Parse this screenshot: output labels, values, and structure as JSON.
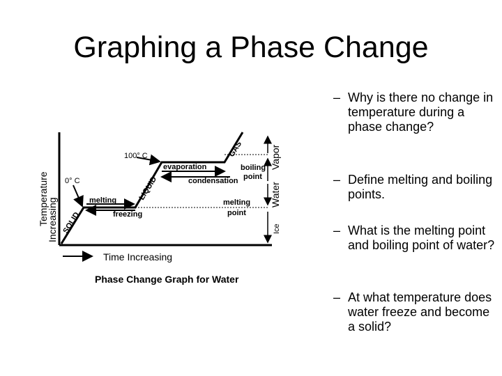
{
  "slide": {
    "title": "Graphing a Phase Change",
    "bullets": [
      {
        "dash": "–",
        "text": "Why is there no change in temperature during a phase change?"
      },
      {
        "dash": "–",
        "text": "Define melting and boiling points."
      },
      {
        "dash": "–",
        "text": "What is the melting point and boiling point of water?"
      },
      {
        "dash": "–",
        "text": "At what temperature does water freeze and become a solid?"
      }
    ]
  },
  "diagram": {
    "y_axis_line1": "Temperature",
    "y_axis_line2": "Increasing",
    "x_axis_label": "Time Increasing",
    "caption": "Phase Change Graph for Water",
    "temp_100": "100° C",
    "temp_0": "0° C",
    "state_gas": "GAS",
    "state_liquid": "LIQUID",
    "state_solid": "SOLID",
    "evaporation": "evaporation",
    "condensation": "condensation",
    "melting": "melting",
    "freezing": "freezing",
    "boiling_point_1": "boiling",
    "boiling_point_2": "point",
    "melting_point_1": "melting",
    "melting_point_2": "point",
    "right_vapor": "Vapor",
    "right_water": "Water",
    "right_ice": "Ice"
  }
}
